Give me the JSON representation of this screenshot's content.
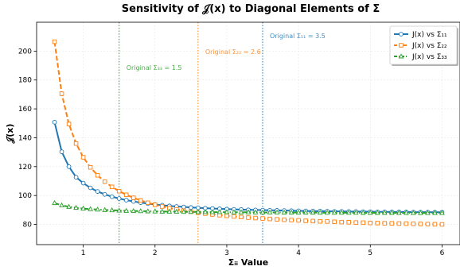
{
  "chart_data": {
    "type": "line",
    "title": "Sensitivity of 𝒥(x) to Diagonal Elements of Σ",
    "xlabel": "Σᵢᵢ Value",
    "ylabel": "𝒥(x)",
    "xlim": [
      0.35,
      6.25
    ],
    "ylim": [
      66,
      220
    ],
    "x_ticks": [
      1,
      2,
      3,
      4,
      5,
      6
    ],
    "y_ticks": [
      80,
      100,
      120,
      140,
      160,
      180,
      200
    ],
    "grid": true,
    "legend_position": "top-right",
    "series": [
      {
        "name": "J(x) vs Σ₁₁",
        "color": "#1f77b4",
        "line_style": "solid",
        "marker": "circle",
        "x": [
          0.6,
          0.7,
          0.8,
          0.9,
          1.0,
          1.1,
          1.2,
          1.3,
          1.4,
          1.5,
          1.6,
          1.7,
          1.8,
          1.9,
          2.0,
          2.1,
          2.2,
          2.3,
          2.4,
          2.5,
          2.6,
          2.7,
          2.8,
          2.9,
          3.0,
          3.1,
          3.2,
          3.3,
          3.4,
          3.5,
          3.6,
          3.7,
          3.8,
          3.9,
          4.0,
          4.1,
          4.2,
          4.3,
          4.4,
          4.5,
          4.6,
          4.7,
          4.8,
          4.9,
          5.0,
          5.1,
          5.2,
          5.3,
          5.4,
          5.5,
          5.6,
          5.7,
          5.8,
          5.9,
          6.0
        ],
        "values": [
          150.8,
          130.3,
          120.0,
          112.7,
          108.6,
          105.3,
          102.8,
          100.8,
          99.2,
          97.9,
          96.8,
          95.9,
          95.1,
          94.4,
          93.8,
          93.3,
          92.8,
          92.4,
          92.1,
          91.7,
          91.5,
          91.2,
          91.0,
          90.8,
          90.6,
          90.4,
          90.3,
          90.1,
          90.0,
          89.9,
          89.8,
          89.7,
          89.6,
          89.5,
          89.4,
          89.3,
          89.2,
          89.2,
          89.1,
          89.0,
          89.0,
          88.9,
          88.9,
          88.8,
          88.8,
          88.7,
          88.7,
          88.6,
          88.6,
          88.6,
          88.5,
          88.5,
          88.5,
          88.4,
          88.4
        ]
      },
      {
        "name": "J(x) vs Σ₂₂",
        "color": "#ff7f0e",
        "line_style": "dashed",
        "marker": "square",
        "x": [
          0.6,
          0.7,
          0.8,
          0.9,
          1.0,
          1.1,
          1.2,
          1.3,
          1.4,
          1.5,
          1.6,
          1.7,
          1.8,
          1.9,
          2.0,
          2.1,
          2.2,
          2.3,
          2.4,
          2.5,
          2.6,
          2.7,
          2.8,
          2.9,
          3.0,
          3.1,
          3.2,
          3.3,
          3.4,
          3.5,
          3.6,
          3.7,
          3.8,
          3.9,
          4.0,
          4.1,
          4.2,
          4.3,
          4.4,
          4.5,
          4.6,
          4.7,
          4.8,
          4.9,
          5.0,
          5.1,
          5.2,
          5.3,
          5.4,
          5.5,
          5.6,
          5.7,
          5.8,
          5.9,
          6.0
        ],
        "values": [
          206.5,
          170.5,
          149.5,
          136.0,
          126.5,
          119.5,
          114.0,
          109.6,
          106.0,
          103.0,
          100.5,
          98.4,
          96.6,
          95.0,
          93.6,
          92.4,
          91.3,
          90.4,
          89.5,
          88.8,
          88.1,
          87.5,
          86.9,
          86.4,
          85.9,
          85.5,
          85.1,
          84.7,
          84.4,
          84.1,
          83.8,
          83.5,
          83.2,
          83.0,
          82.8,
          82.5,
          82.3,
          82.1,
          82.0,
          81.8,
          81.6,
          81.5,
          81.3,
          81.2,
          81.0,
          80.9,
          80.8,
          80.7,
          80.6,
          80.5,
          80.4,
          80.3,
          80.2,
          80.1,
          80.0
        ]
      },
      {
        "name": "J(x) vs Σ₃₃",
        "color": "#2ca02c",
        "line_style": "dashdot",
        "marker": "triangle",
        "x": [
          0.6,
          0.7,
          0.8,
          0.9,
          1.0,
          1.1,
          1.2,
          1.3,
          1.4,
          1.5,
          1.6,
          1.7,
          1.8,
          1.9,
          2.0,
          2.1,
          2.2,
          2.3,
          2.4,
          2.5,
          2.6,
          2.7,
          2.8,
          2.9,
          3.0,
          3.1,
          3.2,
          3.3,
          3.4,
          3.5,
          3.6,
          3.7,
          3.8,
          3.9,
          4.0,
          4.1,
          4.2,
          4.3,
          4.4,
          4.5,
          4.6,
          4.7,
          4.8,
          4.9,
          5.0,
          5.1,
          5.2,
          5.3,
          5.4,
          5.5,
          5.6,
          5.7,
          5.8,
          5.9,
          6.0
        ],
        "values": [
          94.8,
          93.2,
          92.2,
          91.5,
          91.0,
          90.6,
          90.3,
          90.0,
          89.8,
          89.6,
          89.4,
          89.3,
          89.2,
          89.1,
          89.0,
          88.9,
          88.8,
          88.8,
          88.7,
          88.7,
          88.6,
          88.6,
          88.5,
          88.5,
          88.5,
          88.4,
          88.4,
          88.4,
          88.3,
          88.3,
          88.3,
          88.3,
          88.2,
          88.2,
          88.2,
          88.2,
          88.2,
          88.1,
          88.1,
          88.1,
          88.1,
          88.1,
          88.1,
          88.0,
          88.0,
          88.0,
          88.0,
          88.0,
          88.0,
          88.0,
          87.9,
          87.9,
          87.9,
          87.9,
          87.9
        ]
      }
    ],
    "reference_lines": [
      {
        "x": 1.5,
        "color": "#2ca02c",
        "label": "Original Σ₃₃ = 1.5",
        "label_y": 187
      },
      {
        "x": 2.6,
        "color": "#ff7f0e",
        "label": "Original Σ₂₂ = 2.6",
        "label_y": 198
      },
      {
        "x": 3.5,
        "color": "#1f77b4",
        "label": "Original Σ₁₁ = 3.5",
        "label_y": 209
      }
    ]
  }
}
